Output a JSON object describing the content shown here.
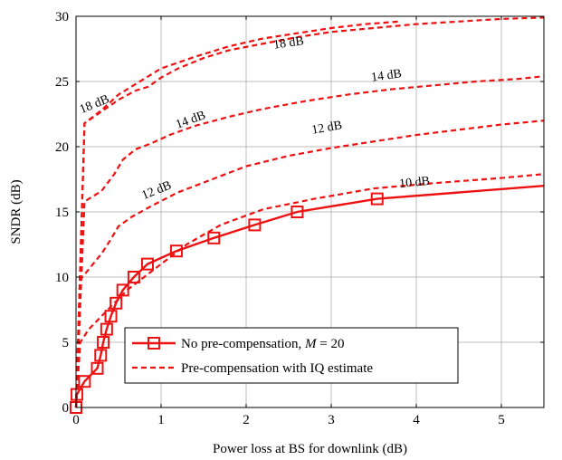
{
  "chart_data": {
    "type": "line",
    "title": "",
    "xlabel": "Power loss at BS for downlink (dB)",
    "ylabel": "SNDR (dB)",
    "xlim": [
      0,
      5.5
    ],
    "ylim": [
      0,
      30
    ],
    "xticks": [
      0,
      1,
      2,
      3,
      4,
      5
    ],
    "yticks": [
      0,
      5,
      10,
      15,
      20,
      25,
      30
    ],
    "grid": true,
    "legend_position": "bottom-right",
    "colors": {
      "series": "#ee1111",
      "grid": "#bdbdbd",
      "axis": "#000000"
    },
    "legend": {
      "solid_prefix": "No pre-compensation, ",
      "solid_math": "M",
      "solid_suffix": " = 20",
      "dashed": "Pre-compensation with IQ estimate"
    },
    "series": [
      {
        "name": "No pre-compensation, M = 20",
        "style": "solid",
        "marker": "square",
        "x": [
          0,
          0.01,
          0.1,
          0.25,
          0.29,
          0.32,
          0.36,
          0.41,
          0.47,
          0.55,
          0.68,
          0.84,
          1.18,
          1.62,
          2.1,
          2.6,
          3.54,
          5.5
        ],
        "y": [
          0,
          1,
          2,
          3,
          4,
          5,
          6,
          7,
          8,
          9,
          10,
          11,
          12,
          13,
          14,
          15,
          16,
          17
        ]
      },
      {
        "style": "dashed",
        "label": "10 dB",
        "x": [
          0,
          0.05,
          0.15,
          0.3,
          0.45,
          0.6,
          0.8,
          1.0,
          1.3,
          1.7,
          2.2,
          2.8,
          3.5,
          4.2,
          5.0,
          5.5
        ],
        "y": [
          0,
          5,
          6,
          7,
          8,
          9,
          10,
          11,
          12.5,
          14,
          15.2,
          16,
          16.8,
          17.2,
          17.6,
          17.9
        ]
      },
      {
        "style": "dashed",
        "label": "12 dB",
        "x": [
          0,
          0.05,
          0.15,
          0.3,
          0.4,
          0.5,
          0.65,
          0.9,
          1.2,
          1.6,
          2.0,
          2.5,
          3.0,
          3.5,
          4.0,
          4.5,
          5.0,
          5.5
        ],
        "y": [
          0,
          9.8,
          10.6,
          11.8,
          12.8,
          13.9,
          14.6,
          15.5,
          16.5,
          17.5,
          18.5,
          19.3,
          19.9,
          20.4,
          20.9,
          21.3,
          21.7,
          22.0
        ]
      },
      {
        "style": "dashed",
        "label": "12 dB",
        "x": [
          0,
          0.1,
          0.3,
          0.45,
          0.55,
          0.7,
          0.9,
          1.1,
          1.4,
          1.8,
          2.2,
          2.7,
          3.2,
          3.7,
          4.2,
          4.7,
          5.2,
          5.5
        ],
        "y": [
          0,
          15.8,
          16.6,
          17.9,
          19.0,
          19.8,
          20.3,
          20.9,
          21.6,
          22.3,
          22.9,
          23.5,
          24.0,
          24.4,
          24.7,
          25.0,
          25.2,
          25.4
        ]
      },
      {
        "style": "dashed",
        "label": "14 dB",
        "x": [
          0,
          0.1,
          0.3,
          0.5,
          0.7,
          0.85,
          1.0,
          1.2,
          1.5,
          1.8,
          2.2,
          2.6,
          3.0,
          3.5,
          4.0,
          4.5,
          5.0,
          5.5
        ],
        "y": [
          0,
          21.8,
          22.7,
          23.6,
          24.3,
          24.6,
          25.3,
          26.0,
          26.8,
          27.4,
          27.9,
          28.4,
          28.8,
          29.1,
          29.4,
          29.6,
          29.8,
          29.9
        ]
      },
      {
        "style": "dashed",
        "label": "",
        "x": [
          0,
          0.1,
          0.3,
          0.5,
          0.75,
          1.0,
          1.4,
          1.8,
          2.2,
          2.6,
          3.0,
          3.4,
          3.8
        ],
        "y": [
          0,
          21.8,
          22.8,
          24.0,
          25.0,
          26.0,
          26.9,
          27.7,
          28.3,
          28.7,
          29.1,
          29.4,
          29.6
        ]
      }
    ],
    "annotations": [
      {
        "text": "18 dB",
        "x": 0.22,
        "y": 23.2,
        "angle": -22
      },
      {
        "text": "18 dB",
        "x": 2.5,
        "y": 27.9,
        "angle": -8
      },
      {
        "text": "14 dB",
        "x": 1.35,
        "y": 22.0,
        "angle": -20
      },
      {
        "text": "14 dB",
        "x": 3.65,
        "y": 25.4,
        "angle": -8
      },
      {
        "text": "12 dB",
        "x": 0.95,
        "y": 16.6,
        "angle": -22
      },
      {
        "text": "12 dB",
        "x": 2.95,
        "y": 21.4,
        "angle": -10
      },
      {
        "text": "10 dB",
        "x": 3.98,
        "y": 17.2,
        "angle": -6
      }
    ]
  }
}
